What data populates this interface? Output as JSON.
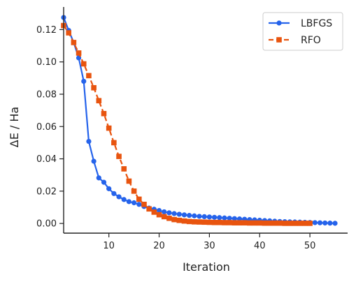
{
  "chart_data": {
    "type": "line",
    "xlabel": "Iteration",
    "ylabel": "ΔE / Ha",
    "xlim": [
      1,
      57.5
    ],
    "ylim": [
      -0.006,
      0.134
    ],
    "xticks": [
      10,
      20,
      30,
      40,
      50
    ],
    "yticks": [
      0.0,
      0.02,
      0.04,
      0.06,
      0.08,
      0.1,
      0.12
    ],
    "ytick_labels": [
      "0.00",
      "0.02",
      "0.04",
      "0.06",
      "0.08",
      "0.10",
      "0.12"
    ],
    "grid": false,
    "legend_position": "top-right",
    "series": [
      {
        "name": "LBFGS",
        "color": "#2563eb",
        "marker": "circle",
        "line_style": "solid",
        "x": [
          1,
          2,
          3,
          4,
          5,
          6,
          7,
          8,
          9,
          10,
          11,
          12,
          13,
          14,
          15,
          16,
          17,
          18,
          19,
          20,
          21,
          22,
          23,
          24,
          25,
          26,
          27,
          28,
          29,
          30,
          31,
          32,
          33,
          34,
          35,
          36,
          37,
          38,
          39,
          40,
          41,
          42,
          43,
          44,
          45,
          46,
          47,
          48,
          49,
          50,
          51,
          52,
          53,
          54,
          55
        ],
        "values": [
          0.1275,
          0.1195,
          0.112,
          0.1025,
          0.088,
          0.0508,
          0.0385,
          0.0282,
          0.0255,
          0.0215,
          0.0185,
          0.0165,
          0.0148,
          0.0135,
          0.0128,
          0.0118,
          0.0105,
          0.0095,
          0.0088,
          0.008,
          0.0072,
          0.0066,
          0.0061,
          0.0057,
          0.0053,
          0.005,
          0.0047,
          0.0044,
          0.0042,
          0.004,
          0.0038,
          0.0036,
          0.0034,
          0.0032,
          0.003,
          0.0028,
          0.0026,
          0.0024,
          0.0022,
          0.002,
          0.0018,
          0.0016,
          0.0014,
          0.0012,
          0.0011,
          0.001,
          0.0009,
          0.0008,
          0.0007,
          0.0006,
          0.0005,
          0.0004,
          0.0003,
          0.0002,
          0.0001
        ]
      },
      {
        "name": "RFO",
        "color": "#e8540f",
        "marker": "square",
        "line_style": "dashed",
        "x": [
          1,
          2,
          3,
          4,
          5,
          6,
          7,
          8,
          9,
          10,
          11,
          12,
          13,
          14,
          15,
          16,
          17,
          18,
          19,
          20,
          21,
          22,
          23,
          24,
          25,
          26,
          27,
          28,
          29,
          30,
          31,
          32,
          33,
          34,
          35,
          36,
          37,
          38,
          39,
          40,
          41,
          42,
          43,
          44,
          45,
          46,
          47,
          48,
          49,
          50
        ],
        "values": [
          0.1225,
          0.118,
          0.112,
          0.1055,
          0.0988,
          0.0915,
          0.084,
          0.076,
          0.068,
          0.059,
          0.05,
          0.0415,
          0.0338,
          0.0262,
          0.02,
          0.015,
          0.0118,
          0.009,
          0.007,
          0.0054,
          0.0042,
          0.0032,
          0.0024,
          0.0019,
          0.0015,
          0.0012,
          0.001,
          0.0009,
          0.0008,
          0.0007,
          0.0006,
          0.0006,
          0.0005,
          0.0005,
          0.0004,
          0.0004,
          0.0004,
          0.0003,
          0.0003,
          0.0003,
          0.0002,
          0.0002,
          0.0002,
          0.0002,
          0.0001,
          0.0001,
          0.0001,
          0.0001,
          0.0001,
          0.0001
        ]
      }
    ]
  }
}
